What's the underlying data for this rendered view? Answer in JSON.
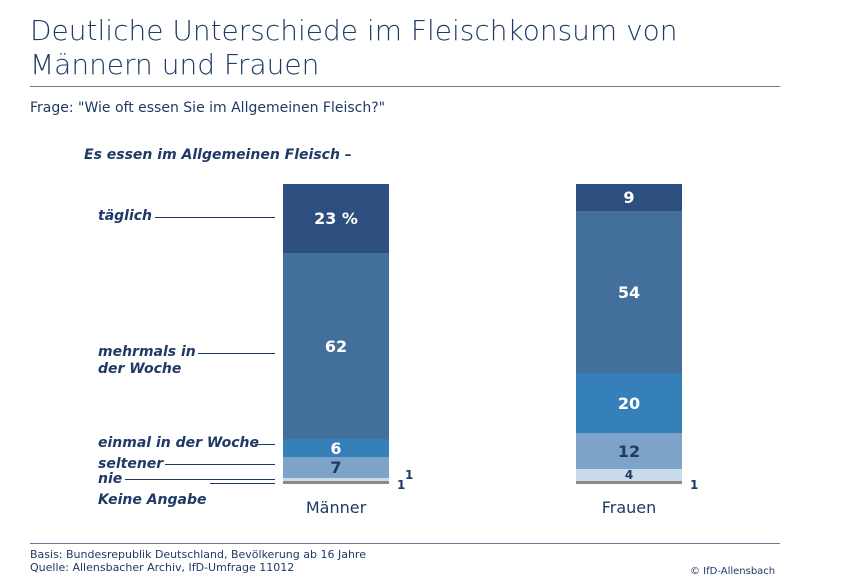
{
  "title": "Deutliche Unterschiede im Fleischkonsum von Männern und Frauen",
  "question": "Frage: \"Wie oft essen Sie im Allgemeinen Fleisch?\"",
  "footer": {
    "basis": "Basis: Bundesrepublik Deutschland, Bevölkerung ab 16 Jahre",
    "source": "Quelle: Allensbacher Archiv, IfD-Umfrage 11012",
    "copyright": "© IfD-Allensbach"
  },
  "chart_data": {
    "type": "stacked-bar",
    "subtitle": "Es essen im Allgemeinen Fleisch –",
    "categories": [
      "Männer",
      "Frauen"
    ],
    "unit": "%",
    "ylim": [
      0,
      100
    ],
    "series": [
      {
        "name": "täglich",
        "values": [
          23,
          9
        ],
        "color": "#2d4f80",
        "text": "#ffffff"
      },
      {
        "name": "mehrmals in der Woche",
        "values": [
          62,
          54
        ],
        "color": "#426f9c",
        "text": "#ffffff"
      },
      {
        "name": "einmal in der Woche",
        "values": [
          6,
          20
        ],
        "color": "#3580b8",
        "text": "#ffffff"
      },
      {
        "name": "seltener",
        "values": [
          7,
          12
        ],
        "color": "#7da3c8",
        "text": "#1f3a66"
      },
      {
        "name": "nie",
        "values": [
          1,
          4
        ],
        "color": "#c9dcea",
        "text": "#1f3a66"
      },
      {
        "name": "Keine Angabe",
        "values": [
          1,
          1
        ],
        "color": "#8a8a8a",
        "text": "#1f3a66"
      }
    ],
    "labels": {
      "taeglich": "täglich",
      "mehrmals1": "mehrmals in",
      "mehrmals2": "der Woche",
      "einmal": "einmal in der Woche",
      "seltener": "seltener",
      "nie": "nie",
      "keine": "Keine Angabe"
    }
  }
}
